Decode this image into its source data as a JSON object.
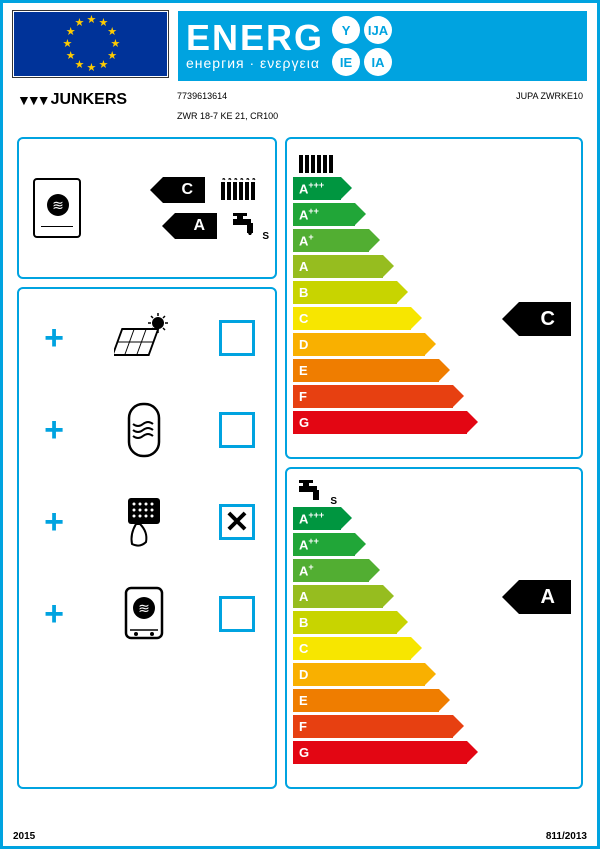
{
  "header": {
    "title_main": "ENERG",
    "title_sub": "енергия · ενεργεια",
    "circles": [
      "Y",
      "IJA",
      "IE",
      "IA"
    ]
  },
  "brand": "JUNKERS",
  "article_number": "7739613614",
  "product_code": "JUPA ZWRKE10",
  "model_line": "ZWR 18-7 KE 21, CR100",
  "summary": {
    "heating_class": "C",
    "water_class": "A",
    "water_profile": "S"
  },
  "components": [
    {
      "icon": "solar",
      "checked": false
    },
    {
      "icon": "tank",
      "checked": false
    },
    {
      "icon": "control",
      "checked": true
    },
    {
      "icon": "boiler",
      "checked": false
    }
  ],
  "scale": {
    "classes": [
      "A+++",
      "A++",
      "A+",
      "A",
      "B",
      "C",
      "D",
      "E",
      "F",
      "G"
    ],
    "colors": [
      "#009640",
      "#21a638",
      "#52ae32",
      "#96bd1f",
      "#c8d400",
      "#f7e600",
      "#f9b000",
      "#ef7d00",
      "#e74011",
      "#e30613"
    ],
    "widths": [
      48,
      62,
      76,
      90,
      104,
      118,
      132,
      146,
      160,
      174
    ]
  },
  "heating_rating": "C",
  "water_rating": "A",
  "footer": {
    "year": "2015",
    "regulation": "811/2013"
  }
}
